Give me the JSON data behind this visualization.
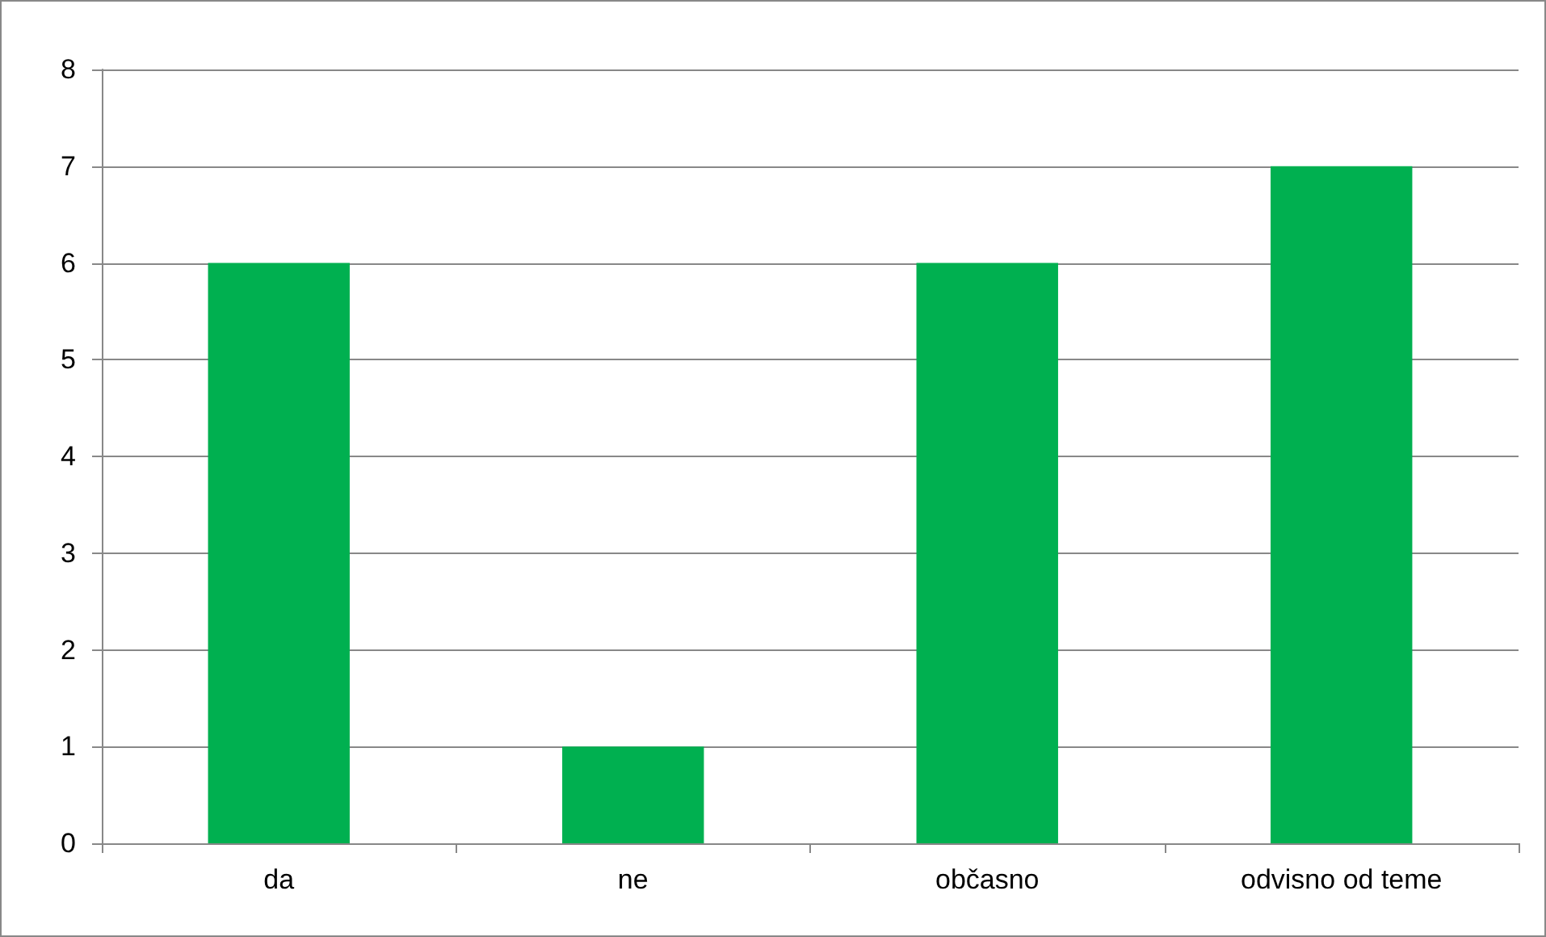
{
  "chart_data": {
    "type": "bar",
    "categories": [
      "da",
      "ne",
      "občasno",
      "odvisno od teme"
    ],
    "values": [
      6,
      1,
      6,
      7
    ],
    "color": "#00b050",
    "ylim": [
      0,
      8
    ],
    "yticks": [
      0,
      1,
      2,
      3,
      4,
      5,
      6,
      7,
      8
    ],
    "grid": "y"
  }
}
